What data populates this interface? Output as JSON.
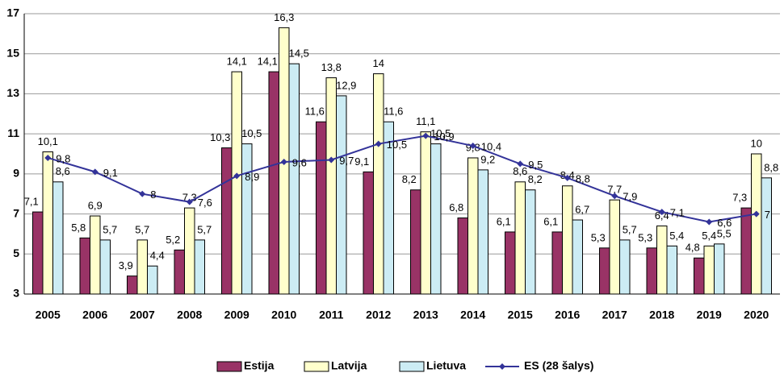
{
  "chart_data": {
    "type": "bar",
    "categories": [
      "2005",
      "2006",
      "2007",
      "2008",
      "2009",
      "2010",
      "2011",
      "2012",
      "2013",
      "2014",
      "2015",
      "2016",
      "2017",
      "2018",
      "2019",
      "2020"
    ],
    "ylim": [
      3,
      17
    ],
    "yticks": [
      3,
      5,
      7,
      9,
      11,
      13,
      15,
      17
    ],
    "grid": true,
    "legend": "bottom",
    "series": [
      {
        "name": "Estija",
        "color": "#993366",
        "type": "bar",
        "values": [
          7.1,
          5.8,
          3.9,
          5.2,
          10.3,
          14.1,
          11.6,
          9.1,
          8.2,
          6.8,
          6.1,
          6.1,
          5.3,
          5.3,
          4.8,
          7.3
        ],
        "value_labels": [
          "7,1",
          "5,8",
          "3,9",
          "5,2",
          "10,3",
          "14,1",
          "11,6",
          "9,1",
          "8,2",
          "6,8",
          "6,1",
          "6,1",
          "5,3",
          "5,3",
          "4,8",
          "7,3"
        ]
      },
      {
        "name": "Latvija",
        "color": "#FFFFCC",
        "type": "bar",
        "values": [
          10.1,
          6.9,
          5.7,
          7.3,
          14.1,
          16.3,
          13.8,
          14,
          11.1,
          9.8,
          8.6,
          8.4,
          7.7,
          6.4,
          5.4,
          10
        ],
        "value_labels": [
          "10,1",
          "6,9",
          "5,7",
          "7,3",
          "14,1",
          "16,3",
          "13,8",
          "14",
          "11,1",
          "9,8",
          "8,6",
          "8,4",
          "7,7",
          "6,4",
          "5,4",
          "10"
        ]
      },
      {
        "name": "Lietuva",
        "color": "#CCECF4",
        "type": "bar",
        "values": [
          8.6,
          5.7,
          4.4,
          5.7,
          10.5,
          14.5,
          12.9,
          11.6,
          10.5,
          9.2,
          8.2,
          6.7,
          5.7,
          5.4,
          5.5,
          8.8
        ],
        "value_labels": [
          "8,6",
          "5,7",
          "4,4",
          "5,7",
          "10,5",
          "14,5",
          "12,9",
          "11,6",
          "10,5",
          "9,2",
          "8,2",
          "6,7",
          "5,7",
          "5,4",
          "5,5",
          "8,8"
        ]
      },
      {
        "name": "ES (28 šalys)",
        "color": "#333399",
        "type": "line",
        "values": [
          9.8,
          9.1,
          8,
          7.6,
          8.9,
          9.6,
          9.7,
          10.5,
          10.9,
          10.4,
          9.5,
          8.8,
          7.9,
          7.1,
          6.6,
          7
        ],
        "value_labels": [
          "9,8",
          "9,1",
          "8",
          "7,6",
          "8,9",
          "9,6",
          "9,7",
          "10,5",
          "10,9",
          "10,4",
          "9,5",
          "8,8",
          "7,9",
          "7,1",
          "6,6",
          "7"
        ]
      }
    ]
  }
}
